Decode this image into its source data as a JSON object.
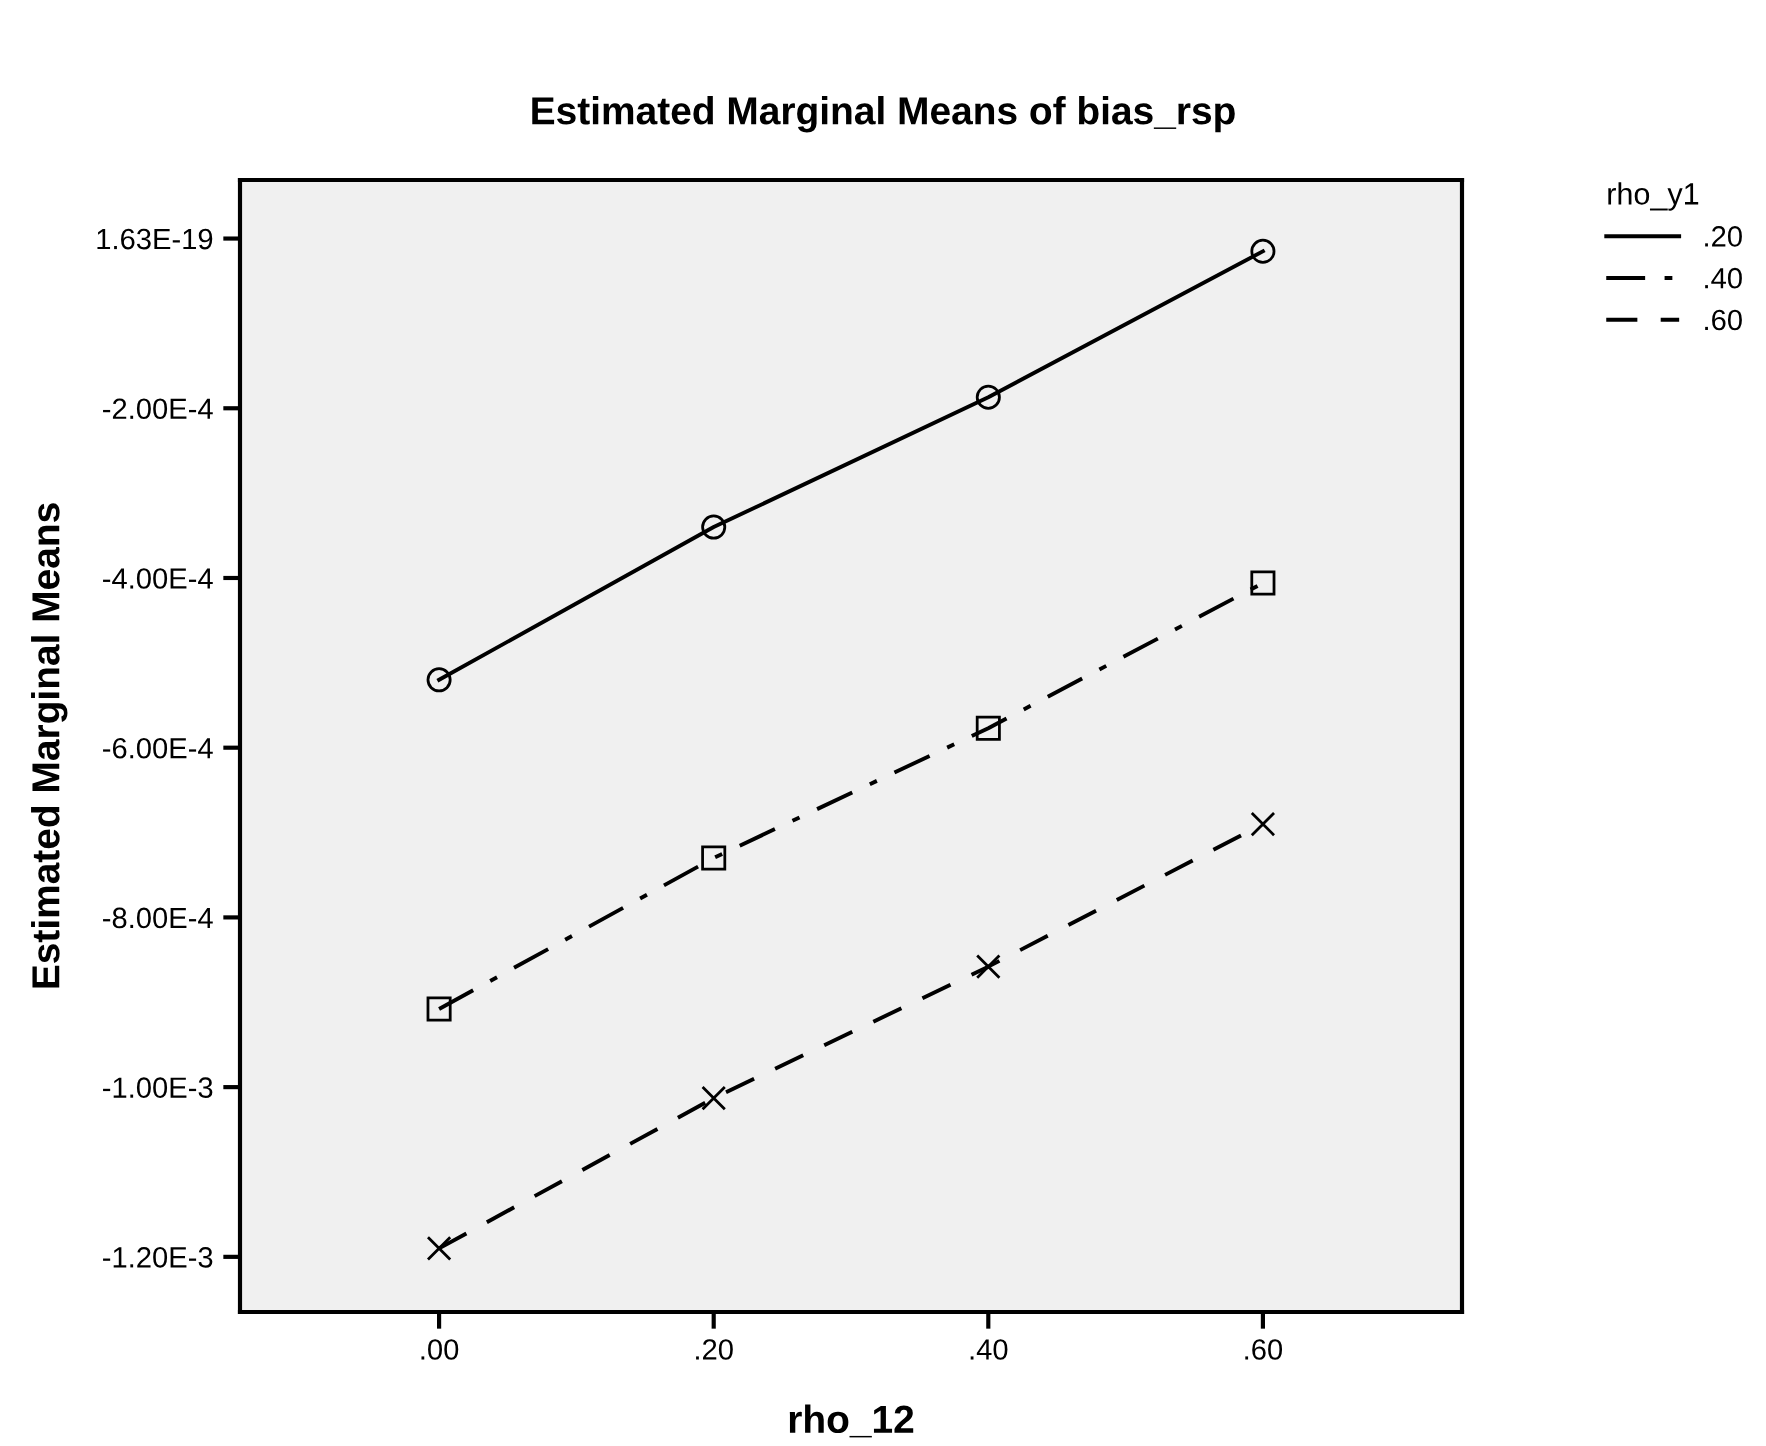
{
  "chart_data": {
    "type": "line",
    "title": "Estimated Marginal Means of bias_rsp",
    "xlabel": "rho_12",
    "ylabel": "Estimated Marginal Means",
    "legend_title": "rho_y1",
    "x": [
      0.0,
      0.2,
      0.4,
      0.6
    ],
    "series": [
      {
        "name": ".20",
        "color": "#000000",
        "marker": "circle",
        "line_style": "solid",
        "values": [
          -0.00052,
          -0.00034,
          -0.000187,
          -1.5e-05
        ]
      },
      {
        "name": ".40",
        "color": "#000000",
        "marker": "square",
        "line_style": "dashdot",
        "values": [
          -0.000908,
          -0.00073,
          -0.000577,
          -0.000406
        ]
      },
      {
        "name": ".60",
        "color": "#000000",
        "marker": "cross",
        "line_style": "dashed",
        "values": [
          -0.00119,
          -0.001013,
          -0.000858,
          -0.00069
        ]
      }
    ],
    "xlim": [
      -0.145,
      0.745
    ],
    "xticks": [
      {
        "value": 0.0,
        "label": ".00"
      },
      {
        "value": 0.2,
        "label": ".20"
      },
      {
        "value": 0.4,
        "label": ".40"
      },
      {
        "value": 0.6,
        "label": ".60"
      }
    ],
    "ylim": [
      -0.001265,
      6.9e-05
    ],
    "yticks": [
      {
        "value": 1.63e-19,
        "label": "1.63E-19"
      },
      {
        "value": -0.0002,
        "label": "-2.00E-4"
      },
      {
        "value": -0.0004,
        "label": "-4.00E-4"
      },
      {
        "value": -0.0006,
        "label": "-6.00E-4"
      },
      {
        "value": -0.0008,
        "label": "-8.00E-4"
      },
      {
        "value": -0.001,
        "label": "-1.00E-3"
      },
      {
        "value": -0.0012,
        "label": "-1.20E-3"
      }
    ],
    "grid": false,
    "legend": "top right"
  }
}
